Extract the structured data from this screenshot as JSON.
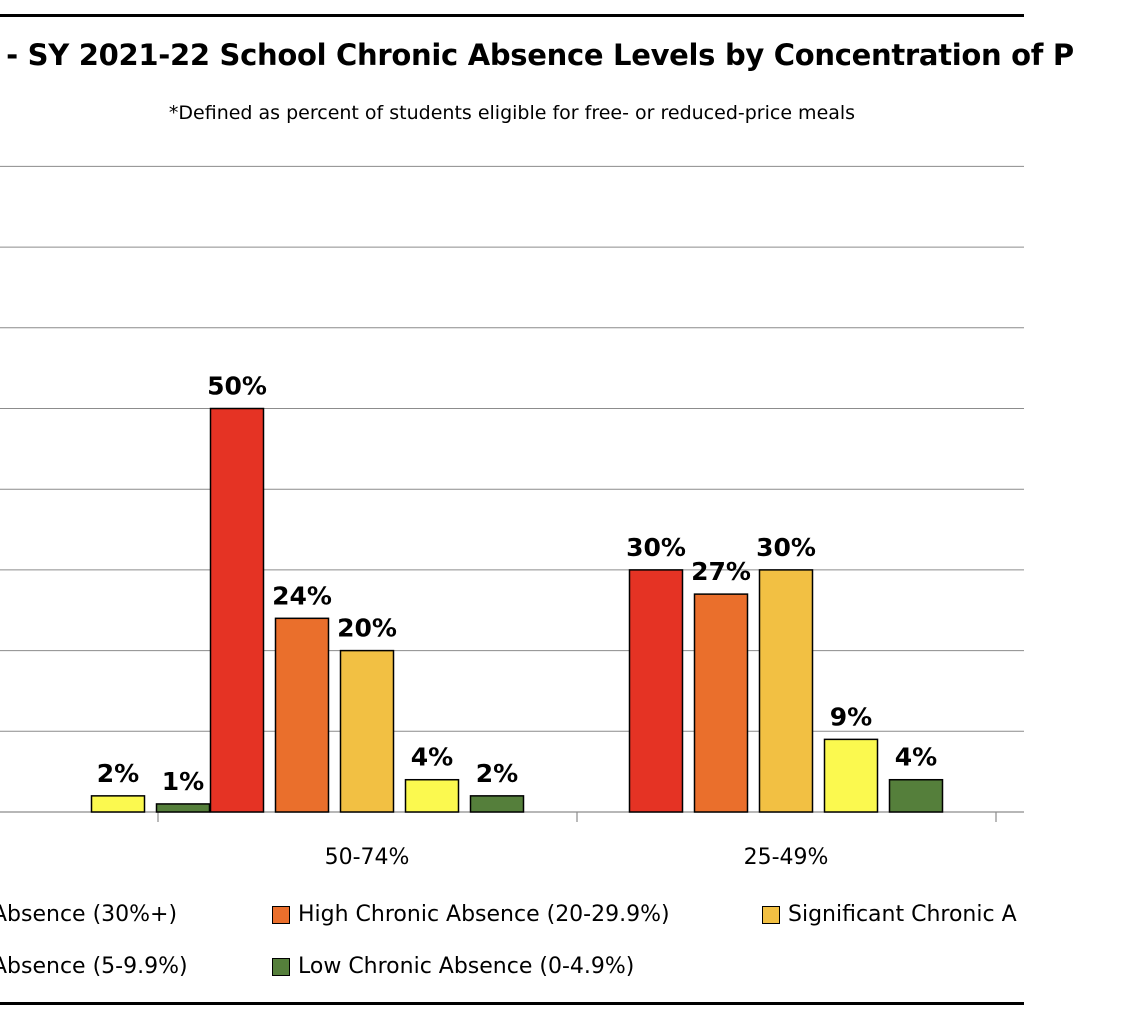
{
  "chart_data": {
    "type": "bar",
    "title": "- SY 2021-22 School Chronic Absence Levels by Concentration of P",
    "subtitle": "*Defined as percent of students eligible for free- or reduced-price meals",
    "categories": [
      "",
      "50-74%",
      "25-49%"
    ],
    "series": [
      {
        "name": "Absence (30%+)",
        "color": "#e53324",
        "values": [
          null,
          50,
          30
        ],
        "labels": [
          "",
          "50%",
          "30%"
        ]
      },
      {
        "name": "High Chronic Absence (20-29.9%)",
        "color": "#ea6f2c",
        "values": [
          null,
          24,
          27
        ],
        "labels": [
          "",
          "24%",
          "27%"
        ]
      },
      {
        "name": "Significant Chronic A",
        "color": "#f2c043",
        "values": [
          null,
          20,
          30
        ],
        "labels": [
          "",
          "20%",
          "30%"
        ]
      },
      {
        "name": "Absence (5-9.9%)",
        "color": "#fbf94f",
        "values": [
          2,
          4,
          9
        ],
        "labels": [
          "2%",
          "4%",
          "9%"
        ]
      },
      {
        "name": "Low Chronic Absence (0-4.9%)",
        "color": "#557f3b",
        "values": [
          1,
          2,
          4
        ],
        "labels": [
          "1%",
          "2%",
          "4%"
        ]
      }
    ],
    "ylim": [
      0,
      80
    ],
    "grid": true,
    "legend_position": "bottom"
  }
}
